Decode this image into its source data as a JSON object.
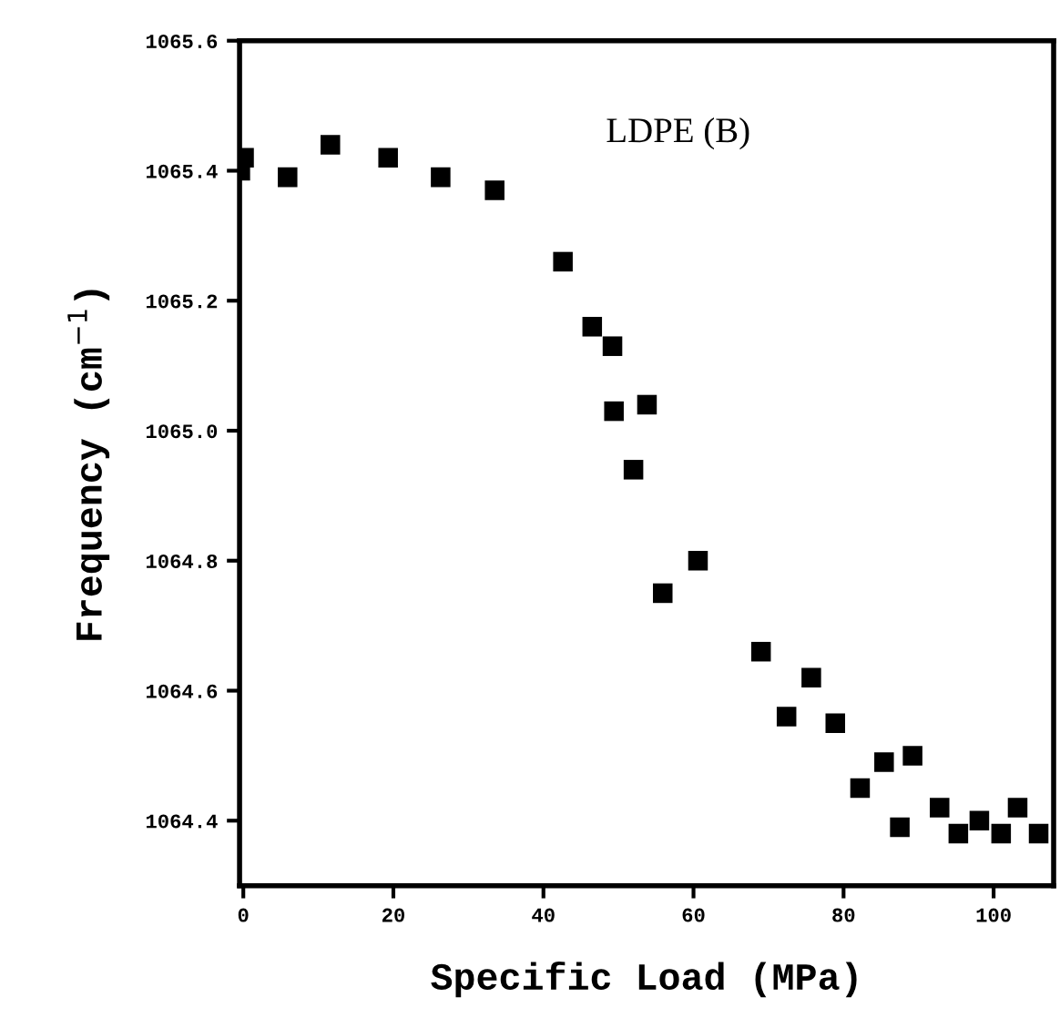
{
  "chart_data": {
    "type": "scatter",
    "xlabel": "Specific Load (MPa)",
    "ylabel": "Frequency (cm$^{−1}$)",
    "annotations": [
      "LDPE (B)"
    ],
    "marker": "square",
    "grid": false,
    "x": [
      -0.4,
      0.1,
      5.9,
      11.6,
      19.3,
      26.3,
      33.5,
      42.6,
      46.5,
      49.2,
      49.4,
      53.8,
      52.0,
      60.6,
      55.9,
      69.0,
      75.7,
      72.4,
      78.9,
      82.2,
      85.4,
      89.2,
      87.5,
      92.8,
      95.3,
      98.1,
      101.0,
      103.2,
      106.0
    ],
    "series": [
      {
        "color": "#000000",
        "values": [
          1065.4,
          1065.42,
          1065.39,
          1065.44,
          1065.42,
          1065.39,
          1065.37,
          1065.26,
          1065.16,
          1065.13,
          1065.03,
          1065.04,
          1064.94,
          1064.8,
          1064.75,
          1064.66,
          1064.62,
          1064.56,
          1064.55,
          1064.45,
          1064.49,
          1064.5,
          1064.39,
          1064.42,
          1064.38,
          1064.4,
          1064.38,
          1064.42,
          1064.38
        ]
      }
    ],
    "xlim": [
      -0.5,
      108
    ],
    "xticks": [
      0,
      20,
      40,
      60,
      80,
      100
    ],
    "ylim": [
      1064.3,
      1065.6
    ],
    "yticks": [
      1064.4,
      1064.6,
      1064.8,
      {
        "value": 1065,
        "label": "1065.0"
      },
      1065.2,
      1065.4,
      1065.6
    ]
  }
}
